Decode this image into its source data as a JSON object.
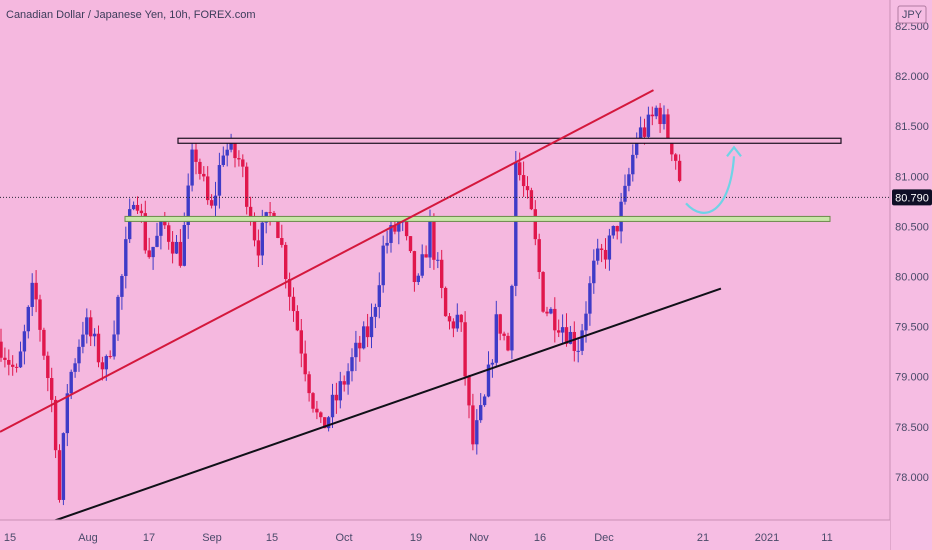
{
  "header": {
    "title": "Canadian Dollar / Japanese Yen, 10h, FOREX.com"
  },
  "price_axis": {
    "unit": "JPY",
    "current_price": "80.790"
  },
  "colors": {
    "background": "#f5b8df",
    "candle_up": "#3f3bc7",
    "candle_down": "#e0174c",
    "trend_red": "#d4183d",
    "trend_black": "#101018",
    "resistance_fill": "#f4b3da",
    "support_fill": "#c9e6a8",
    "arrow": "#6fd3e6",
    "price_tag": "#0f0f26"
  },
  "chart_data": {
    "type": "candlestick",
    "title": "Canadian Dollar / Japanese Yen, 10h, FOREX.com",
    "ylim": [
      77.57,
      82.76
    ],
    "yticks": [
      "82.500",
      "82.000",
      "81.500",
      "81.000",
      "80.500",
      "80.000",
      "79.500",
      "79.000",
      "78.500",
      "78.000"
    ],
    "xticks": [
      "15",
      "Aug",
      "17",
      "Sep",
      "15",
      "Oct",
      "19",
      "Nov",
      "16",
      "Dec",
      "21",
      "2021",
      "11"
    ],
    "grid": false,
    "last_price": 80.79,
    "annotations": {
      "resistance_zone": [
        81.33,
        81.38
      ],
      "support_zone": [
        80.55,
        80.6
      ],
      "red_trendline": {
        "from": [
          "2020-07-10",
          78.45
        ],
        "to": [
          "2020-12-12",
          81.86
        ]
      },
      "black_trendline": {
        "from": [
          "2020-07-22",
          77.55
        ],
        "to": [
          "2020-12-28",
          79.88
        ]
      },
      "projection_arrow": {
        "from": 80.75,
        "to": 81.32,
        "direction": "up"
      }
    },
    "waypoints": [
      [
        "2020-07-10",
        79.35
      ],
      [
        "2020-07-14",
        79.0
      ],
      [
        "2020-07-18",
        79.9
      ],
      [
        "2020-07-21",
        79.1
      ],
      [
        "2020-07-23",
        78.55
      ],
      [
        "2020-07-24",
        77.7
      ],
      [
        "2020-07-26",
        78.9
      ],
      [
        "2020-07-30",
        79.55
      ],
      [
        "2020-08-04",
        79.05
      ],
      [
        "2020-08-08",
        80.0
      ],
      [
        "2020-08-11",
        80.95
      ],
      [
        "2020-08-14",
        80.2
      ],
      [
        "2020-08-18",
        80.5
      ],
      [
        "2020-08-22",
        80.2
      ],
      [
        "2020-08-25",
        81.3
      ],
      [
        "2020-08-29",
        80.6
      ],
      [
        "2020-09-01",
        81.3
      ],
      [
        "2020-09-05",
        81.15
      ],
      [
        "2020-09-09",
        80.3
      ],
      [
        "2020-09-13",
        80.7
      ],
      [
        "2020-09-17",
        79.8
      ],
      [
        "2020-09-21",
        79.0
      ],
      [
        "2020-09-24",
        78.45
      ],
      [
        "2020-09-28",
        78.8
      ],
      [
        "2020-10-02",
        79.2
      ],
      [
        "2020-10-06",
        79.5
      ],
      [
        "2020-10-09",
        80.3
      ],
      [
        "2020-10-13",
        80.55
      ],
      [
        "2020-10-17",
        79.85
      ],
      [
        "2020-10-20",
        80.5
      ],
      [
        "2020-10-24",
        79.5
      ],
      [
        "2020-10-27",
        79.6
      ],
      [
        "2020-10-30",
        78.3
      ],
      [
        "2020-11-02",
        78.75
      ],
      [
        "2020-11-05",
        79.6
      ],
      [
        "2020-11-08",
        79.2
      ],
      [
        "2020-11-09",
        81.2
      ],
      [
        "2020-11-13",
        80.6
      ],
      [
        "2020-11-16",
        79.7
      ],
      [
        "2020-11-20",
        79.55
      ],
      [
        "2020-11-24",
        79.3
      ],
      [
        "2020-11-28",
        80.1
      ],
      [
        "2020-12-02",
        80.35
      ],
      [
        "2020-12-05",
        80.75
      ],
      [
        "2020-12-08",
        81.4
      ],
      [
        "2020-12-11",
        81.5
      ],
      [
        "2020-12-13",
        81.7
      ],
      [
        "2020-12-15",
        81.45
      ],
      [
        "2020-12-17",
        81.25
      ],
      [
        "2020-12-19",
        80.8
      ]
    ]
  }
}
